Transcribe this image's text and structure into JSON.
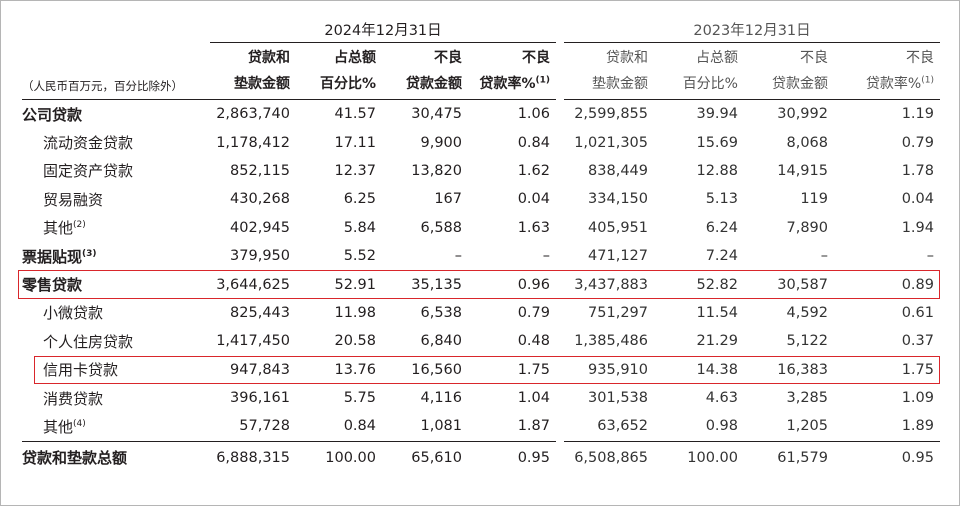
{
  "unit_note": "（人民币百万元，百分比除外）",
  "years": {
    "current": "2024年12月31日",
    "prior": "2023年12月31日"
  },
  "columns": {
    "amount": [
      "贷款和",
      "垫款金额"
    ],
    "share": [
      "占总额",
      "百分比%"
    ],
    "npl_amount": [
      "不良",
      "贷款金额"
    ],
    "npl_ratio": [
      "不良",
      "贷款率%"
    ],
    "npl_ratio_note": "(1)"
  },
  "rows": [
    {
      "label": "公司贷款",
      "note": "",
      "type": "cat",
      "c": [
        "2,863,740",
        "41.57",
        "30,475",
        "1.06"
      ],
      "p": [
        "2,599,855",
        "39.94",
        "30,992",
        "1.19"
      ]
    },
    {
      "label": "流动资金贷款",
      "note": "",
      "type": "sub",
      "c": [
        "1,178,412",
        "17.11",
        "9,900",
        "0.84"
      ],
      "p": [
        "1,021,305",
        "15.69",
        "8,068",
        "0.79"
      ]
    },
    {
      "label": "固定资产贷款",
      "note": "",
      "type": "sub",
      "c": [
        "852,115",
        "12.37",
        "13,820",
        "1.62"
      ],
      "p": [
        "838,449",
        "12.88",
        "14,915",
        "1.78"
      ]
    },
    {
      "label": "贸易融资",
      "note": "",
      "type": "sub",
      "c": [
        "430,268",
        "6.25",
        "167",
        "0.04"
      ],
      "p": [
        "334,150",
        "5.13",
        "119",
        "0.04"
      ]
    },
    {
      "label": "其他",
      "note": "(2)",
      "type": "sub",
      "c": [
        "402,945",
        "5.84",
        "6,588",
        "1.63"
      ],
      "p": [
        "405,951",
        "6.24",
        "7,890",
        "1.94"
      ]
    },
    {
      "label": "票据贴现",
      "note": "(3)",
      "type": "cat",
      "c": [
        "379,950",
        "5.52",
        "–",
        "–"
      ],
      "p": [
        "471,127",
        "7.24",
        "–",
        "–"
      ]
    },
    {
      "label": "零售贷款",
      "note": "",
      "type": "cat",
      "c": [
        "3,644,625",
        "52.91",
        "35,135",
        "0.96"
      ],
      "p": [
        "3,437,883",
        "52.82",
        "30,587",
        "0.89"
      ]
    },
    {
      "label": "小微贷款",
      "note": "",
      "type": "sub",
      "c": [
        "825,443",
        "11.98",
        "6,538",
        "0.79"
      ],
      "p": [
        "751,297",
        "11.54",
        "4,592",
        "0.61"
      ]
    },
    {
      "label": "个人住房贷款",
      "note": "",
      "type": "sub",
      "c": [
        "1,417,450",
        "20.58",
        "6,840",
        "0.48"
      ],
      "p": [
        "1,385,486",
        "21.29",
        "5,122",
        "0.37"
      ]
    },
    {
      "label": "信用卡贷款",
      "note": "",
      "type": "sub",
      "c": [
        "947,843",
        "13.76",
        "16,560",
        "1.75"
      ],
      "p": [
        "935,910",
        "14.38",
        "16,383",
        "1.75"
      ]
    },
    {
      "label": "消费贷款",
      "note": "",
      "type": "sub",
      "c": [
        "396,161",
        "5.75",
        "4,116",
        "1.04"
      ],
      "p": [
        "301,538",
        "4.63",
        "3,285",
        "1.09"
      ]
    },
    {
      "label": "其他",
      "note": "(4)",
      "type": "sub",
      "c": [
        "57,728",
        "0.84",
        "1,081",
        "1.87"
      ],
      "p": [
        "63,652",
        "0.98",
        "1,205",
        "1.89"
      ]
    }
  ],
  "total": {
    "label": "贷款和垫款总额",
    "c": [
      "6,888,315",
      "100.00",
      "65,610",
      "0.95"
    ],
    "p": [
      "6,508,865",
      "100.00",
      "61,579",
      "0.95"
    ]
  },
  "highlight_color": "#d9262b"
}
